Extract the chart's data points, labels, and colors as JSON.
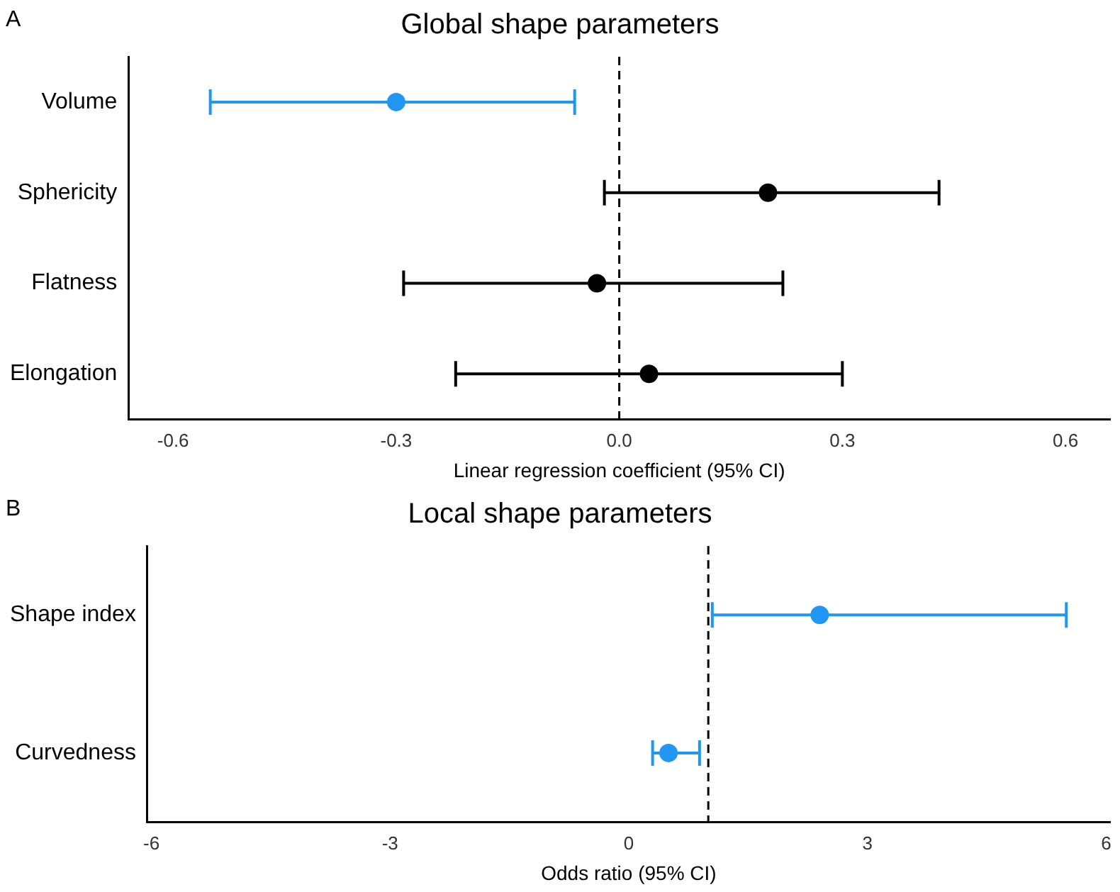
{
  "chart_data": [
    {
      "type": "scatter",
      "orientation": "horizontal",
      "title": "Global shape parameters",
      "xlabel": "Linear regression coefficient (95% CI)",
      "annotations": [
        "A"
      ],
      "categories": [
        "Volume",
        "Sphericity",
        "Flatness",
        "Elongation"
      ],
      "values": [
        -0.3,
        0.2,
        -0.03,
        0.04
      ],
      "errors": [
        [
          -0.55,
          -0.06
        ],
        [
          -0.02,
          0.43
        ],
        [
          -0.29,
          0.22
        ],
        [
          -0.22,
          0.3
        ]
      ],
      "colors": [
        "#2196f3",
        "#000000",
        "#000000",
        "#000000"
      ],
      "xlim": [
        -0.66,
        0.66
      ],
      "xticks": [
        {
          "value": -0.6,
          "label": "-0.6"
        },
        {
          "value": -0.3,
          "label": "-0.3"
        },
        {
          "value": 0,
          "label": "0.0"
        },
        {
          "value": 0.3,
          "label": "0.3"
        },
        {
          "value": 0.6,
          "label": "0.6"
        }
      ],
      "ref_lines": [
        {
          "axis": "x",
          "value": 0,
          "color": "#000000",
          "line_style": "dashed"
        }
      ],
      "marker": "circle",
      "grid": false,
      "legend": false
    },
    {
      "type": "scatter",
      "orientation": "horizontal",
      "title": "Local shape parameters",
      "xlabel": "Odds ratio (95% CI)",
      "annotations": [
        "B"
      ],
      "categories": [
        "Shape index",
        "Curvedness"
      ],
      "values": [
        2.4,
        0.5
      ],
      "errors": [
        [
          1.05,
          5.5
        ],
        [
          0.3,
          0.89
        ]
      ],
      "colors": [
        "#2196f3",
        "#2196f3"
      ],
      "xlim": [
        -6.05,
        6.05
      ],
      "xticks": [
        -6,
        -3,
        0,
        3,
        6
      ],
      "ref_lines": [
        {
          "axis": "x",
          "value": 1,
          "color": "#000000",
          "line_style": "dashed"
        }
      ],
      "marker": "circle",
      "grid": false,
      "legend": false
    }
  ]
}
